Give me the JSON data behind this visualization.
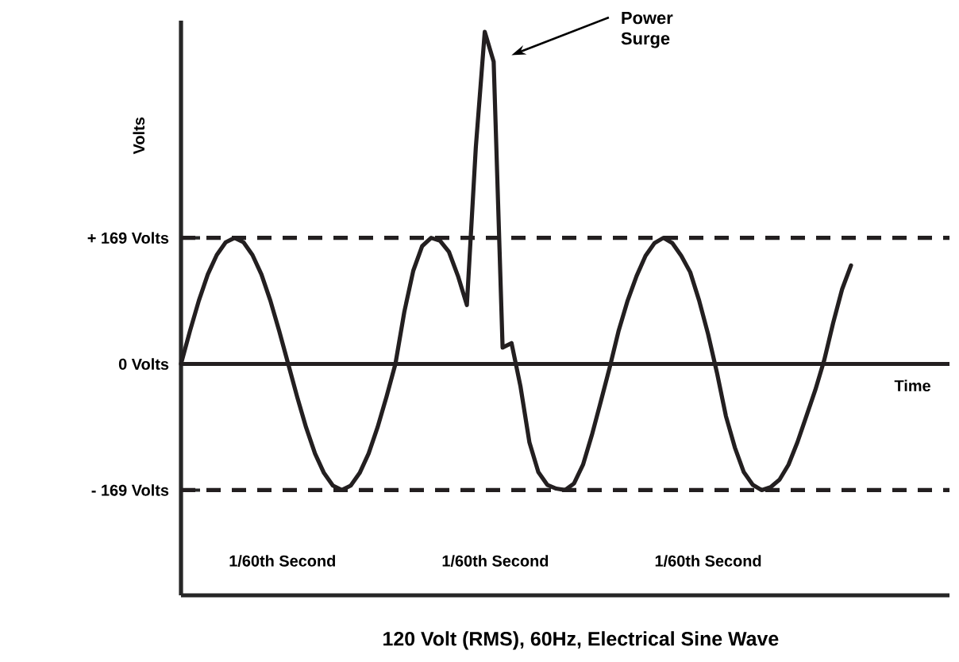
{
  "chart_data": {
    "type": "line",
    "title": "120 Volt (RMS), 60Hz, Electrical Sine Wave",
    "xlabel": "Time",
    "ylabel": "Volts",
    "categories": [
      null,
      null,
      null,
      null,
      null,
      null,
      null,
      null,
      null,
      null,
      null,
      null,
      null,
      null,
      null,
      null,
      null,
      null,
      null,
      null,
      null,
      null,
      null,
      null,
      null,
      null,
      null,
      null,
      null,
      null,
      null,
      null,
      null,
      null,
      null,
      null,
      null,
      null,
      null,
      null,
      null,
      null,
      null,
      null,
      null,
      null,
      null,
      null,
      null,
      null,
      null,
      null,
      null,
      null,
      null,
      null,
      null,
      null,
      null,
      null,
      null,
      null,
      null,
      null,
      null,
      null,
      null,
      null,
      null,
      null,
      null,
      null,
      null,
      null,
      null,
      null
    ],
    "series": [
      {
        "color": "#231f20",
        "values": [
          0,
          44,
          85,
          120,
          146,
          163,
          169,
          163,
          146,
          120,
          85,
          44,
          0,
          -44,
          -85,
          -120,
          -146,
          -163,
          -169,
          -163,
          -146,
          -120,
          -85,
          -44,
          0,
          70,
          125,
          158,
          169,
          165,
          150,
          118,
          79,
          290,
          445,
          405,
          22,
          28,
          -30,
          -105,
          -145,
          -162,
          -167,
          -169,
          -160,
          -135,
          -95,
          -50,
          -4,
          45,
          85,
          118,
          145,
          162,
          169,
          162,
          145,
          123,
          85,
          40,
          -12,
          -70,
          -112,
          -145,
          -162,
          -169,
          -165,
          -155,
          -135,
          -105,
          -70,
          -35,
          5,
          55,
          100,
          132
        ]
      }
    ],
    "ylim": [
      -310,
      460
    ],
    "yticks": [
      {
        "value": -169,
        "label": "- 169 Volts"
      },
      {
        "value": 0,
        "label": "0 Volts"
      },
      {
        "value": 169,
        "label": "+ 169 Volts"
      }
    ],
    "ref_lines": [
      {
        "axis": "y",
        "value": 169,
        "line_style": "dashed",
        "color": "#231f20"
      },
      {
        "axis": "y",
        "value": 0,
        "line_style": "solid",
        "color": "#231f20"
      },
      {
        "axis": "y",
        "value": -169,
        "line_style": "dashed",
        "color": "#231f20"
      }
    ],
    "annotations": [
      "1/60th Second",
      "1/60th Second",
      "1/60th Second",
      "Power Surge"
    ],
    "grid": false,
    "marker": "none",
    "line_style": "solid"
  }
}
